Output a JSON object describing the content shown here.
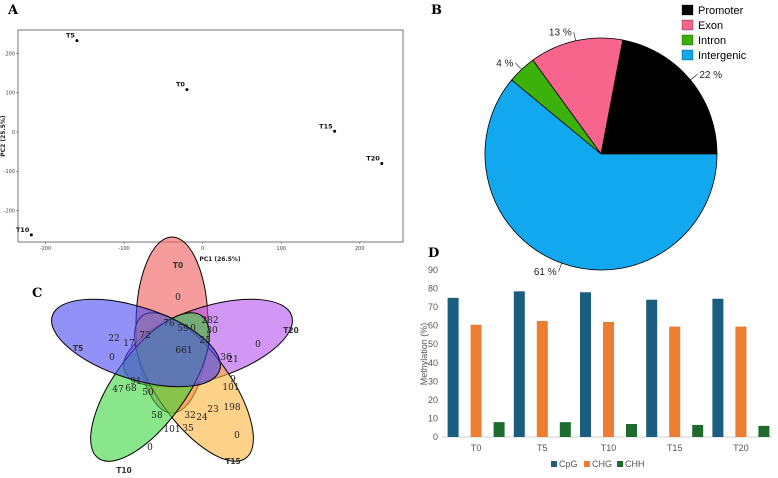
{
  "panels": {
    "a": "A",
    "b": "B",
    "c": "C",
    "d": "D"
  },
  "chart_data": [
    {
      "type": "scatter",
      "xlabel": "PC1 (26.5%)",
      "ylabel": "PC2 (25.5%)",
      "xlim": [
        -235,
        255
      ],
      "ylim": [
        -280,
        260
      ],
      "xticks": [
        -200,
        -100,
        0,
        100,
        200
      ],
      "yticks": [
        -200,
        -100,
        0,
        100,
        200
      ],
      "grid": false,
      "points": [
        {
          "label": "T5",
          "x": -160,
          "y": 233
        },
        {
          "label": "T0",
          "x": -20,
          "y": 108
        },
        {
          "label": "T15",
          "x": 168,
          "y": 2
        },
        {
          "label": "T20",
          "x": 228,
          "y": -80
        },
        {
          "label": "T10",
          "x": -218,
          "y": -262
        }
      ]
    },
    {
      "type": "pie",
      "legend_position": "top-right",
      "slices": [
        {
          "label": "Promoter",
          "value": 22,
          "text": "22 %",
          "color": "#000000"
        },
        {
          "label": "Exon",
          "value": 13,
          "text": "13 %",
          "color": "#F7648C"
        },
        {
          "label": "Intron",
          "value": 4,
          "text": "4 %",
          "color": "#3CB00B"
        },
        {
          "label": "Intergenic",
          "value": 61,
          "text": "61 %",
          "color": "#12A8F0"
        }
      ]
    },
    {
      "type": "venn",
      "sets": [
        {
          "name": "T0",
          "color": "#F05A5A"
        },
        {
          "name": "T20",
          "color": "#B452EE"
        },
        {
          "name": "T15",
          "color": "#FFB43C"
        },
        {
          "name": "T10",
          "color": "#3CD63C"
        },
        {
          "name": "T5",
          "color": "#4848F2"
        }
      ],
      "region_values": [
        "0",
        "0",
        "0",
        "0",
        "0",
        "76",
        "282",
        "198",
        "101",
        "22",
        "59",
        "30",
        "101",
        "58",
        "17",
        "72",
        "21",
        "24",
        "47",
        "68",
        "91",
        "50",
        "36",
        "23",
        "35",
        "25",
        "0",
        "9",
        "661",
        "32"
      ]
    },
    {
      "type": "bar",
      "ylabel": "Methylation (%)",
      "ylim": [
        0,
        90
      ],
      "yticks": [
        0,
        10,
        20,
        30,
        40,
        50,
        60,
        70,
        80,
        90
      ],
      "grid": false,
      "legend_position": "bottom",
      "categories": [
        "T0",
        "T5",
        "T10",
        "T15",
        "T20"
      ],
      "series": [
        {
          "name": "CpG",
          "color": "#1B5D7F",
          "values": [
            75,
            78.5,
            78,
            74,
            74.5
          ]
        },
        {
          "name": "CHG",
          "color": "#ED7D31",
          "values": [
            60.5,
            62.5,
            62,
            59.5,
            59.5
          ]
        },
        {
          "name": "CHH",
          "color": "#1E6B2E",
          "values": [
            8,
            8,
            7,
            6.5,
            6
          ]
        }
      ]
    }
  ]
}
